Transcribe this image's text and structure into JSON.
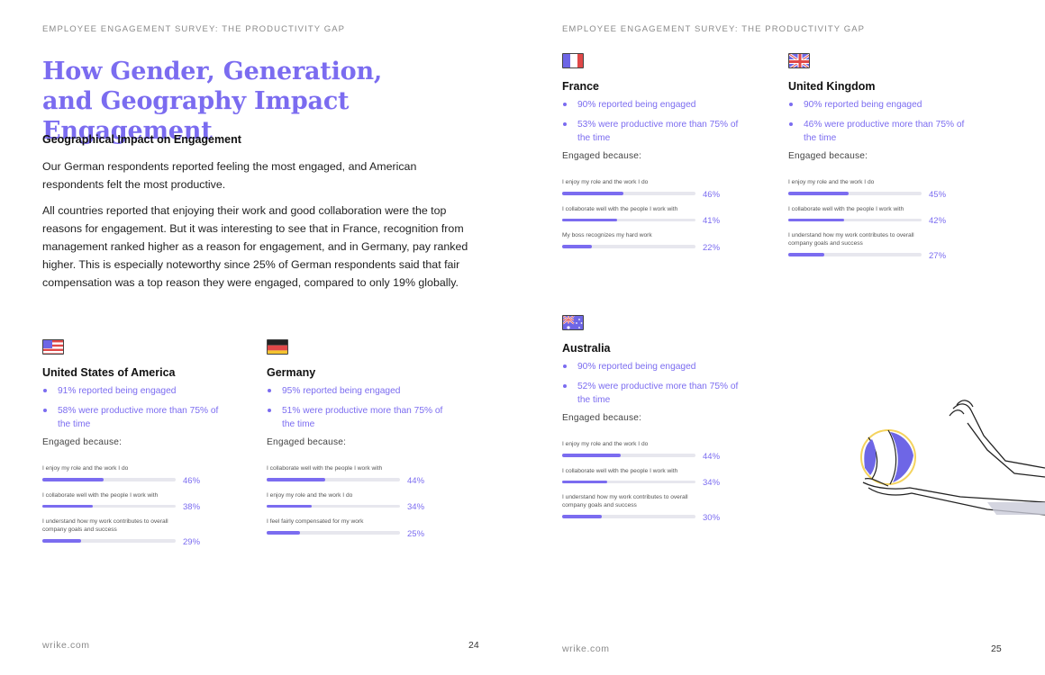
{
  "left_page": {
    "header": "EMPLOYEE ENGAGEMENT SURVEY: THE PRODUCTIVITY GAP",
    "title_line1": "How Gender, Generation,",
    "title_line2": "and Geography Impact Engagement",
    "subhead": "Geographical Impact on Engagement",
    "para1": "Our German respondents reported feeling the most engaged, and American respondents felt the most productive.",
    "para2": "All countries reported that enjoying their work and good collaboration were the top reasons for engagement. But it was interesting to see that in France, recognition from management ranked higher as a reason for engagement, and in Germany, pay ranked higher. This is especially noteworthy since 25% of German respondents said that fair compensation was a top reason they were engaged, compared to only 19% globally.",
    "footer_site": "wrike.com",
    "page_number": "24"
  },
  "right_page": {
    "header": "EMPLOYEE ENGAGEMENT SURVEY: THE PRODUCTIVITY GAP",
    "footer_site": "wrike.com",
    "page_number": "25"
  },
  "engaged_label": "Engaged because:",
  "countries": {
    "usa": {
      "name": "United States of America",
      "bullet1": "91% reported being engaged",
      "bullet2": "58% were productive more than 75% of the time",
      "reasons": [
        {
          "label": "I enjoy my role and the work I do",
          "value": 46,
          "value_text": "46%"
        },
        {
          "label": "I collaborate well with the people I work with",
          "value": 38,
          "value_text": "38%"
        },
        {
          "label": "I understand how my work contributes to overall company goals and success",
          "value": 29,
          "value_text": "29%"
        }
      ]
    },
    "germany": {
      "name": "Germany",
      "bullet1": "95% reported being engaged",
      "bullet2": "51% were productive more than 75% of the time",
      "reasons": [
        {
          "label": "I collaborate well with the people I work with",
          "value": 44,
          "value_text": "44%"
        },
        {
          "label": "I enjoy my role and the work I do",
          "value": 34,
          "value_text": "34%"
        },
        {
          "label": "I feel fairly compensated for my work",
          "value": 25,
          "value_text": "25%"
        }
      ]
    },
    "france": {
      "name": "France",
      "bullet1": "90% reported being engaged",
      "bullet2": "53% were productive more than 75% of the time",
      "reasons": [
        {
          "label": "I enjoy my role and the work I do",
          "value": 46,
          "value_text": "46%"
        },
        {
          "label": "I collaborate well with the people I work with",
          "value": 41,
          "value_text": "41%"
        },
        {
          "label": "My boss recognizes my hard work",
          "value": 22,
          "value_text": "22%"
        }
      ]
    },
    "uk": {
      "name": "United Kingdom",
      "bullet1": "90% reported being engaged",
      "bullet2": "46% were productive more than 75% of the time",
      "reasons": [
        {
          "label": "I enjoy my role and the work I do",
          "value": 45,
          "value_text": "45%"
        },
        {
          "label": "I collaborate well with the people I work with",
          "value": 42,
          "value_text": "42%"
        },
        {
          "label": "I understand how my work contributes to overall company goals and success",
          "value": 27,
          "value_text": "27%"
        }
      ]
    },
    "australia": {
      "name": "Australia",
      "bullet1": "90% reported being engaged",
      "bullet2": "52% were productive more than 75% of the time",
      "reasons": [
        {
          "label": "I enjoy my role and the work I do",
          "value": 44,
          "value_text": "44%"
        },
        {
          "label": "I collaborate well with the people I work with",
          "value": 34,
          "value_text": "34%"
        },
        {
          "label": "I understand how my work contributes to overall company goals and success",
          "value": 30,
          "value_text": "30%"
        }
      ]
    }
  },
  "colors": {
    "accent": "#7b6cf0",
    "track": "#e7e7ee",
    "heading": "#7b6cf0"
  },
  "icons": {
    "usa": "us-flag-icon",
    "germany": "germany-flag-icon",
    "france": "france-flag-icon",
    "uk": "uk-flag-icon",
    "australia": "australia-flag-icon",
    "illustration": "volleyball-hand-illustration"
  }
}
